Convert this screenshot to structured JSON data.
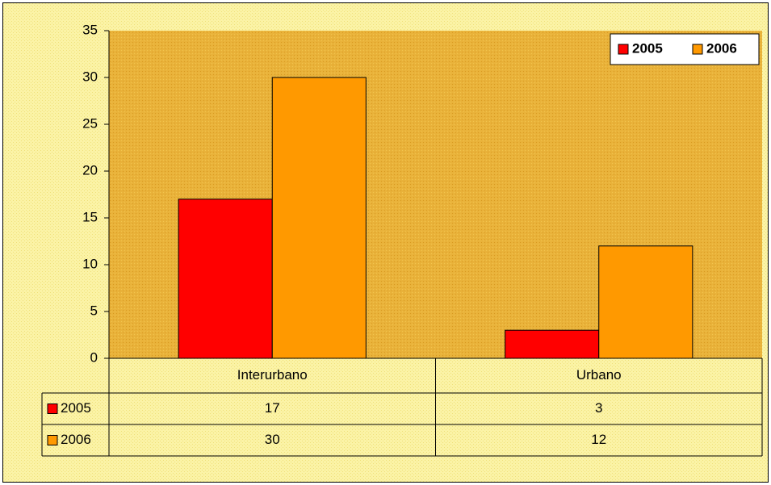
{
  "chart_data": {
    "type": "bar",
    "categories": [
      "Interurbano",
      "Urbano"
    ],
    "series": [
      {
        "name": "2005",
        "color": "#ff0000",
        "values": [
          17,
          3
        ]
      },
      {
        "name": "2006",
        "color": "#ff9900",
        "values": [
          30,
          12
        ]
      }
    ],
    "ylim": [
      0,
      35
    ],
    "yticks": [
      0,
      5,
      10,
      15,
      20,
      25,
      30,
      35
    ],
    "legend": "top-right",
    "data_table": true,
    "grid": false
  }
}
